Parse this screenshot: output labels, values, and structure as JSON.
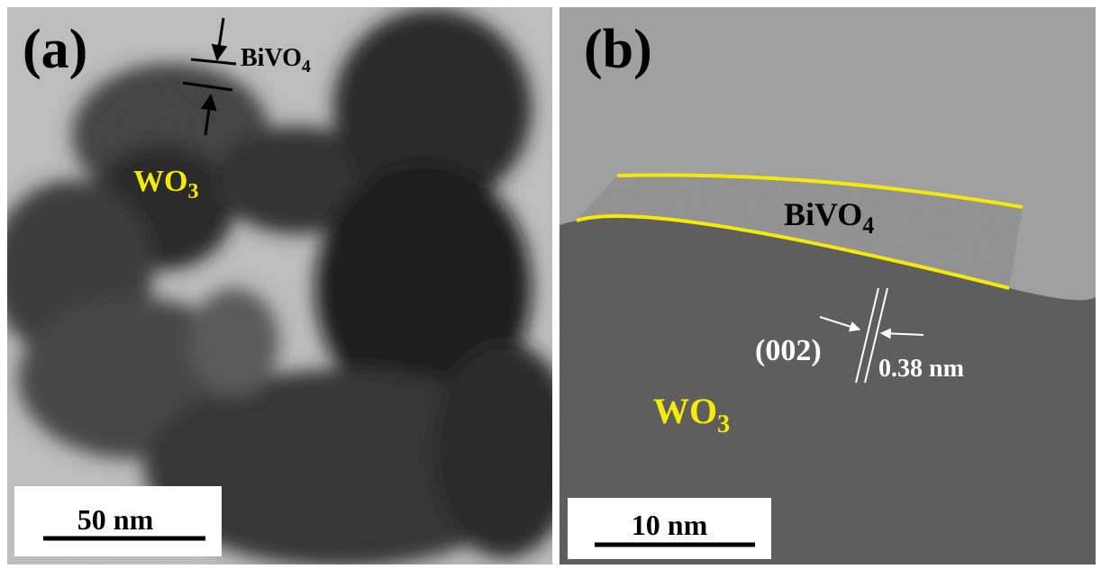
{
  "panels": [
    {
      "label": "(a)",
      "shell": {
        "text": "BiVO",
        "sub": "4"
      },
      "core": {
        "text": "WO",
        "sub": "3"
      },
      "scale_bar": "50 nm"
    },
    {
      "label": "(b)",
      "shell": {
        "text": "BiVO",
        "sub": "4"
      },
      "core": {
        "text": "WO",
        "sub": "3"
      },
      "plane": "(002)",
      "spacing": "0.38 nm",
      "scale_bar": "10 nm"
    }
  ]
}
